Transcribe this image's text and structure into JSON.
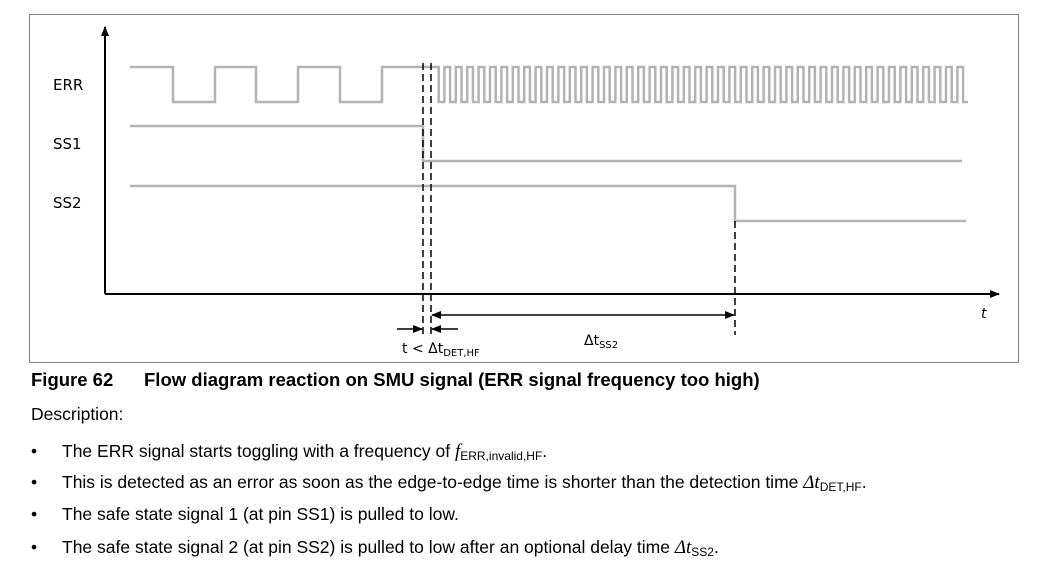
{
  "diagram": {
    "signals": [
      "ERR",
      "SS1",
      "SS2"
    ],
    "time_axis_label": "t",
    "annotations": {
      "detection_prefix": "t < Δt",
      "detection_sub": "DET,HF",
      "delay_main": "Δt",
      "delay_sub": "SS2"
    },
    "colors": {
      "signal": "#b3b3b3",
      "axis": "#000000",
      "frame": "#888888"
    }
  },
  "caption": {
    "number": "Figure 62",
    "title": "Flow diagram reaction on SMU signal (ERR signal frequency too high)"
  },
  "description": {
    "heading": "Description:",
    "bullets": [
      {
        "text": "The ERR signal starts toggling with a frequency of ",
        "sym": "f",
        "sub": "ERR,invalid,HF",
        "end": "."
      },
      {
        "text": "This is detected as an error as soon as the edge-to-edge time is shorter than the detection time ",
        "sym": "Δt",
        "sub": "DET,HF",
        "end": "."
      },
      {
        "text": "The safe state signal 1 (at pin SS1) is pulled to low.",
        "sym": "",
        "sub": "",
        "end": ""
      },
      {
        "text": "The safe state signal 2 (at pin SS2) is pulled to low after an optional delay time ",
        "sym": "Δt",
        "sub": "SS2",
        "end": "."
      }
    ],
    "bullet_char": "•"
  }
}
